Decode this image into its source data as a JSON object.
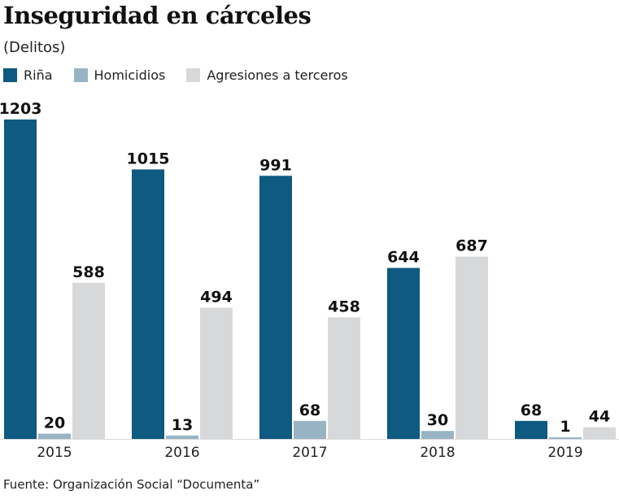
{
  "chart_data": {
    "type": "bar",
    "title": "Inseguridad en cárceles",
    "subtitle": "(Delitos)",
    "categories": [
      "2015",
      "2016",
      "2017",
      "2018",
      "2019"
    ],
    "series": [
      {
        "name": "Riña",
        "color": "#0e5a80",
        "values": [
          1203,
          1015,
          991,
          644,
          68
        ]
      },
      {
        "name": "Homicidios",
        "color": "#98b4c4",
        "values": [
          20,
          13,
          68,
          30,
          1
        ]
      },
      {
        "name": "Agresiones a terceros",
        "color": "#d7d8da",
        "values": [
          588,
          494,
          458,
          687,
          44
        ]
      }
    ],
    "legend": "top-left",
    "grid": false,
    "ylim": [
      0,
      1203
    ]
  },
  "source": "Fuente: Organización Social “Documenta”"
}
